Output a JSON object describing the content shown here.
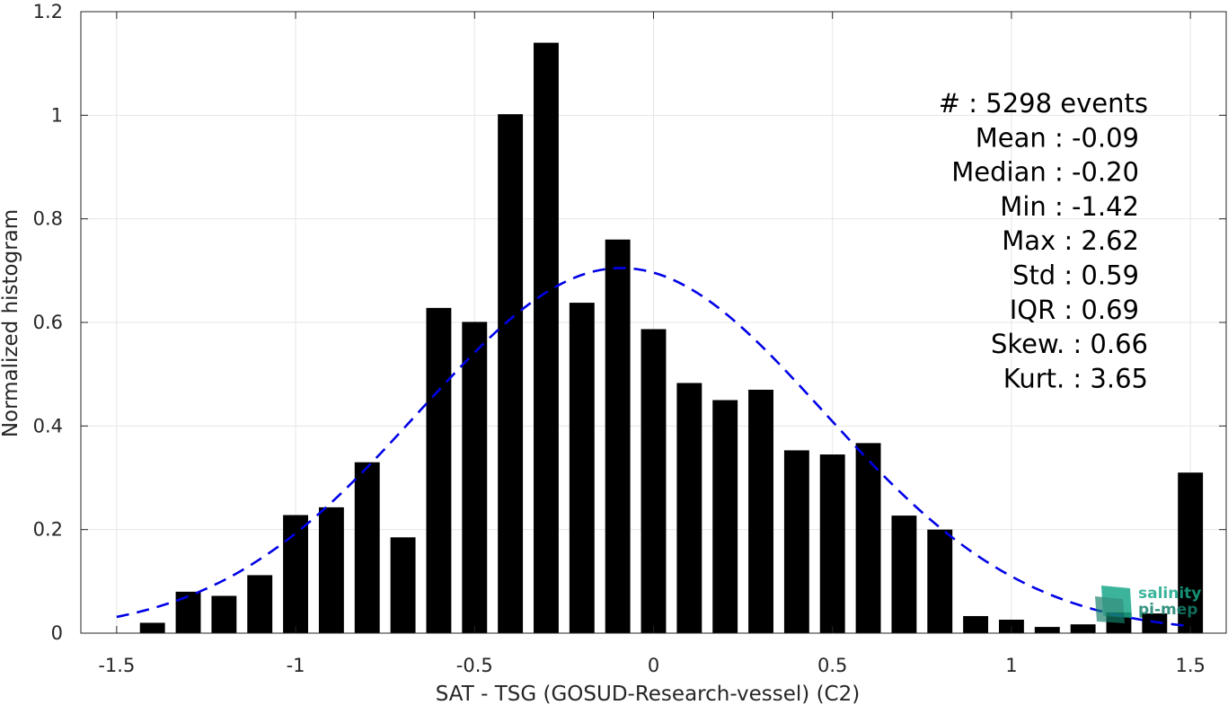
{
  "chart_data": {
    "type": "bar",
    "xlabel": "SAT - TSG (GOSUD-Research-vessel) (C2)",
    "ylabel": "Normalized histogram",
    "xlim": [
      -1.6,
      1.6
    ],
    "ylim": [
      0,
      1.2
    ],
    "x_ticks": [
      -1.5,
      -1,
      -0.5,
      0,
      0.5,
      1,
      1.5
    ],
    "x_tick_labels": [
      "-1.5",
      "-1",
      "-0.5",
      "0",
      "0.5",
      "1",
      "1.5"
    ],
    "y_ticks": [
      0,
      0.2,
      0.4,
      0.6,
      0.8,
      1,
      1.2
    ],
    "y_tick_labels": [
      "0",
      "0.2",
      "0.4",
      "0.6",
      "0.8",
      "1",
      "1.2"
    ],
    "grid": true,
    "bar_width": 0.07,
    "bar_color": "#000000",
    "bins": [
      {
        "x": -1.4,
        "y": 0.02
      },
      {
        "x": -1.3,
        "y": 0.08
      },
      {
        "x": -1.2,
        "y": 0.072
      },
      {
        "x": -1.1,
        "y": 0.112
      },
      {
        "x": -1.0,
        "y": 0.228
      },
      {
        "x": -0.9,
        "y": 0.243
      },
      {
        "x": -0.8,
        "y": 0.33
      },
      {
        "x": -0.7,
        "y": 0.185
      },
      {
        "x": -0.6,
        "y": 0.628
      },
      {
        "x": -0.5,
        "y": 0.601
      },
      {
        "x": -0.4,
        "y": 1.002
      },
      {
        "x": -0.3,
        "y": 1.14
      },
      {
        "x": -0.2,
        "y": 0.638
      },
      {
        "x": -0.1,
        "y": 0.76
      },
      {
        "x": 0.0,
        "y": 0.587
      },
      {
        "x": 0.1,
        "y": 0.483
      },
      {
        "x": 0.2,
        "y": 0.45
      },
      {
        "x": 0.3,
        "y": 0.47
      },
      {
        "x": 0.4,
        "y": 0.353
      },
      {
        "x": 0.5,
        "y": 0.345
      },
      {
        "x": 0.6,
        "y": 0.367
      },
      {
        "x": 0.7,
        "y": 0.227
      },
      {
        "x": 0.8,
        "y": 0.2
      },
      {
        "x": 0.9,
        "y": 0.033
      },
      {
        "x": 1.0,
        "y": 0.026
      },
      {
        "x": 1.1,
        "y": 0.012
      },
      {
        "x": 1.2,
        "y": 0.017
      },
      {
        "x": 1.3,
        "y": 0.04
      },
      {
        "x": 1.4,
        "y": 0.038
      },
      {
        "x": 1.5,
        "y": 0.31
      }
    ],
    "fit_curve": {
      "style": "dashed",
      "color": "#0000e6",
      "mean": -0.09,
      "std": 0.565,
      "peak": 0.705,
      "x_range": [
        -1.5,
        1.5
      ]
    },
    "annotations": [
      "#  : 5298 events",
      "Mean : -0.09",
      "Median : -0.20",
      "Min : -1.42",
      "Max : 2.62",
      "Std : 0.59",
      "IQR : 0.69",
      "Skew. : 0.66",
      "Kurt. : 3.65"
    ]
  },
  "logo": {
    "line1": "salinity",
    "line2": "pi-mep",
    "color": "#1aa88a"
  }
}
